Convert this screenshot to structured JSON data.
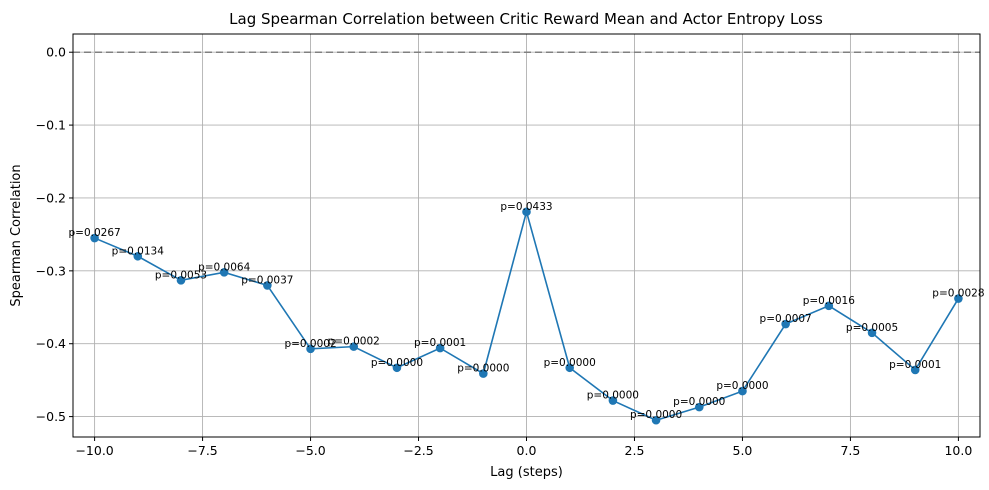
{
  "chart_data": {
    "type": "line",
    "title": "Lag Spearman Correlation between Critic Reward Mean and Actor Entropy Loss",
    "xlabel": "Lag (steps)",
    "ylabel": "Spearman Correlation",
    "xlim": [
      -10.5,
      10.5
    ],
    "ylim": [
      -0.528,
      0.025
    ],
    "xticks": [
      -10,
      -7.5,
      -5,
      -2.5,
      0,
      2.5,
      5,
      7.5,
      10
    ],
    "xtick_labels": [
      "−10.0",
      "−7.5",
      "−5.0",
      "−2.5",
      "0.0",
      "2.5",
      "5.0",
      "7.5",
      "10.0"
    ],
    "yticks": [
      0,
      -0.1,
      -0.2,
      -0.3,
      -0.4,
      -0.5
    ],
    "ytick_labels": [
      "0.0",
      "−0.1",
      "−0.2",
      "−0.3",
      "−0.4",
      "−0.5"
    ],
    "grid": true,
    "reference_line": {
      "y": 0,
      "style": "dashed",
      "color": "#808080"
    },
    "series_color": "#1f77b4",
    "x": [
      -10,
      -9,
      -8,
      -7,
      -6,
      -5,
      -4,
      -3,
      -2,
      -1,
      0,
      1,
      2,
      3,
      4,
      5,
      6,
      7,
      8,
      9,
      10
    ],
    "y": [
      -0.255,
      -0.28,
      -0.313,
      -0.302,
      -0.32,
      -0.407,
      -0.404,
      -0.433,
      -0.406,
      -0.441,
      -0.219,
      -0.433,
      -0.478,
      -0.505,
      -0.487,
      -0.465,
      -0.373,
      -0.348,
      -0.385,
      -0.436,
      -0.338
    ],
    "p_labels": [
      "p=0.0267",
      "p=0.0134",
      "p=0.0053",
      "p=0.0064",
      "p=0.0037",
      "p=0.0002",
      "p=0.0002",
      "p=0.0000",
      "p=0.0001",
      "p=0.0000",
      "p=0.0433",
      "p=0.0000",
      "p=0.0000",
      "p=0.0000",
      "p=0.0000",
      "p=0.0000",
      "p=0.0007",
      "p=0.0016",
      "p=0.0005",
      "p=0.0001",
      "p=0.0028"
    ]
  }
}
